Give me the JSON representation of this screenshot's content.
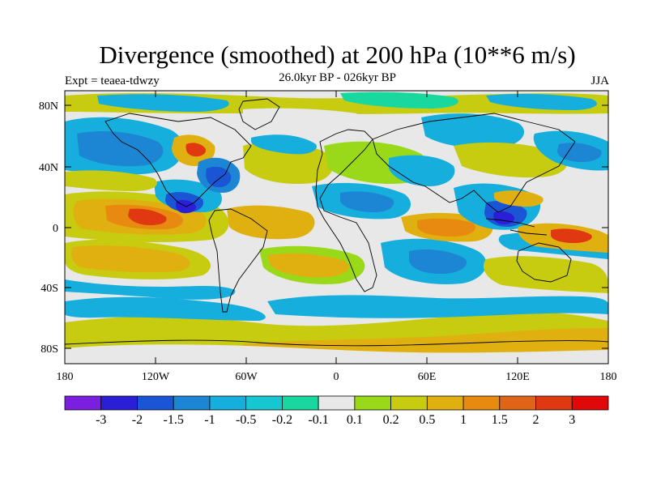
{
  "map": {
    "title": "Divergence (smoothed) at 200 hPa (10**6 m/s)",
    "experiment_label": "Expt = teaea-tdwzy",
    "subtitle": "26.0kyr BP - 026kyr BP",
    "season": "JJA",
    "projection": "cylindrical equidistant",
    "lat_ticks": [
      "80N",
      "40N",
      "0",
      "40S",
      "80S"
    ],
    "lon_ticks": [
      "180",
      "120W",
      "60W",
      "0",
      "60E",
      "120E",
      "180"
    ],
    "colorbar": {
      "colors": [
        "#7a1fe0",
        "#2a1fd6",
        "#1a55d6",
        "#1c86d4",
        "#16aedc",
        "#16c6d0",
        "#18d8a0",
        "#e8e8e8",
        "#9ad81a",
        "#c8cc10",
        "#e0b010",
        "#e88a10",
        "#e06418",
        "#e03810",
        "#e00808"
      ],
      "labels": [
        "-3",
        "-2",
        "-1.5",
        "-1",
        "-0.5",
        "-0.2",
        "-0.1",
        "0.1",
        "0.2",
        "0.5",
        "1",
        "1.5",
        "2",
        "3"
      ]
    }
  }
}
